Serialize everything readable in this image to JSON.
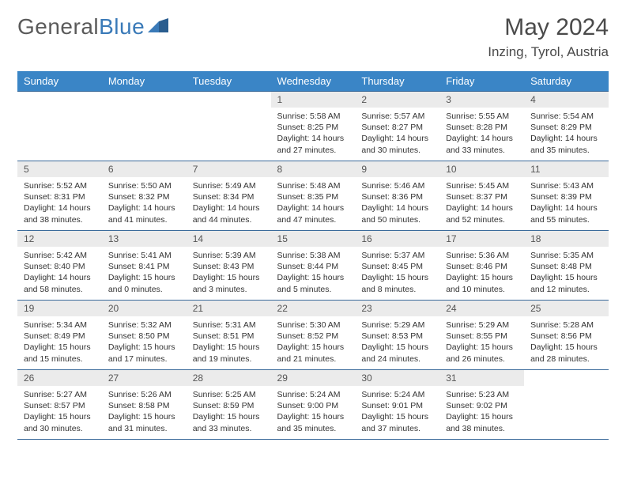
{
  "logo": {
    "part1": "General",
    "part2": "Blue"
  },
  "title": "May 2024",
  "location": "Inzing, Tyrol, Austria",
  "colors": {
    "header_bg": "#3a85c6",
    "header_text": "#ffffff",
    "daynum_bg": "#ebebeb",
    "border": "#3a6a9a",
    "logo_gray": "#5a5a5a",
    "logo_blue": "#3a7ab8"
  },
  "day_names": [
    "Sunday",
    "Monday",
    "Tuesday",
    "Wednesday",
    "Thursday",
    "Friday",
    "Saturday"
  ],
  "weeks": [
    [
      null,
      null,
      null,
      {
        "n": "1",
        "sr": "5:58 AM",
        "ss": "8:25 PM",
        "dl": "14 hours and 27 minutes."
      },
      {
        "n": "2",
        "sr": "5:57 AM",
        "ss": "8:27 PM",
        "dl": "14 hours and 30 minutes."
      },
      {
        "n": "3",
        "sr": "5:55 AM",
        "ss": "8:28 PM",
        "dl": "14 hours and 33 minutes."
      },
      {
        "n": "4",
        "sr": "5:54 AM",
        "ss": "8:29 PM",
        "dl": "14 hours and 35 minutes."
      }
    ],
    [
      {
        "n": "5",
        "sr": "5:52 AM",
        "ss": "8:31 PM",
        "dl": "14 hours and 38 minutes."
      },
      {
        "n": "6",
        "sr": "5:50 AM",
        "ss": "8:32 PM",
        "dl": "14 hours and 41 minutes."
      },
      {
        "n": "7",
        "sr": "5:49 AM",
        "ss": "8:34 PM",
        "dl": "14 hours and 44 minutes."
      },
      {
        "n": "8",
        "sr": "5:48 AM",
        "ss": "8:35 PM",
        "dl": "14 hours and 47 minutes."
      },
      {
        "n": "9",
        "sr": "5:46 AM",
        "ss": "8:36 PM",
        "dl": "14 hours and 50 minutes."
      },
      {
        "n": "10",
        "sr": "5:45 AM",
        "ss": "8:37 PM",
        "dl": "14 hours and 52 minutes."
      },
      {
        "n": "11",
        "sr": "5:43 AM",
        "ss": "8:39 PM",
        "dl": "14 hours and 55 minutes."
      }
    ],
    [
      {
        "n": "12",
        "sr": "5:42 AM",
        "ss": "8:40 PM",
        "dl": "14 hours and 58 minutes."
      },
      {
        "n": "13",
        "sr": "5:41 AM",
        "ss": "8:41 PM",
        "dl": "15 hours and 0 minutes."
      },
      {
        "n": "14",
        "sr": "5:39 AM",
        "ss": "8:43 PM",
        "dl": "15 hours and 3 minutes."
      },
      {
        "n": "15",
        "sr": "5:38 AM",
        "ss": "8:44 PM",
        "dl": "15 hours and 5 minutes."
      },
      {
        "n": "16",
        "sr": "5:37 AM",
        "ss": "8:45 PM",
        "dl": "15 hours and 8 minutes."
      },
      {
        "n": "17",
        "sr": "5:36 AM",
        "ss": "8:46 PM",
        "dl": "15 hours and 10 minutes."
      },
      {
        "n": "18",
        "sr": "5:35 AM",
        "ss": "8:48 PM",
        "dl": "15 hours and 12 minutes."
      }
    ],
    [
      {
        "n": "19",
        "sr": "5:34 AM",
        "ss": "8:49 PM",
        "dl": "15 hours and 15 minutes."
      },
      {
        "n": "20",
        "sr": "5:32 AM",
        "ss": "8:50 PM",
        "dl": "15 hours and 17 minutes."
      },
      {
        "n": "21",
        "sr": "5:31 AM",
        "ss": "8:51 PM",
        "dl": "15 hours and 19 minutes."
      },
      {
        "n": "22",
        "sr": "5:30 AM",
        "ss": "8:52 PM",
        "dl": "15 hours and 21 minutes."
      },
      {
        "n": "23",
        "sr": "5:29 AM",
        "ss": "8:53 PM",
        "dl": "15 hours and 24 minutes."
      },
      {
        "n": "24",
        "sr": "5:29 AM",
        "ss": "8:55 PM",
        "dl": "15 hours and 26 minutes."
      },
      {
        "n": "25",
        "sr": "5:28 AM",
        "ss": "8:56 PM",
        "dl": "15 hours and 28 minutes."
      }
    ],
    [
      {
        "n": "26",
        "sr": "5:27 AM",
        "ss": "8:57 PM",
        "dl": "15 hours and 30 minutes."
      },
      {
        "n": "27",
        "sr": "5:26 AM",
        "ss": "8:58 PM",
        "dl": "15 hours and 31 minutes."
      },
      {
        "n": "28",
        "sr": "5:25 AM",
        "ss": "8:59 PM",
        "dl": "15 hours and 33 minutes."
      },
      {
        "n": "29",
        "sr": "5:24 AM",
        "ss": "9:00 PM",
        "dl": "15 hours and 35 minutes."
      },
      {
        "n": "30",
        "sr": "5:24 AM",
        "ss": "9:01 PM",
        "dl": "15 hours and 37 minutes."
      },
      {
        "n": "31",
        "sr": "5:23 AM",
        "ss": "9:02 PM",
        "dl": "15 hours and 38 minutes."
      },
      null
    ]
  ],
  "labels": {
    "sunrise": "Sunrise:",
    "sunset": "Sunset:",
    "daylight": "Daylight:"
  }
}
